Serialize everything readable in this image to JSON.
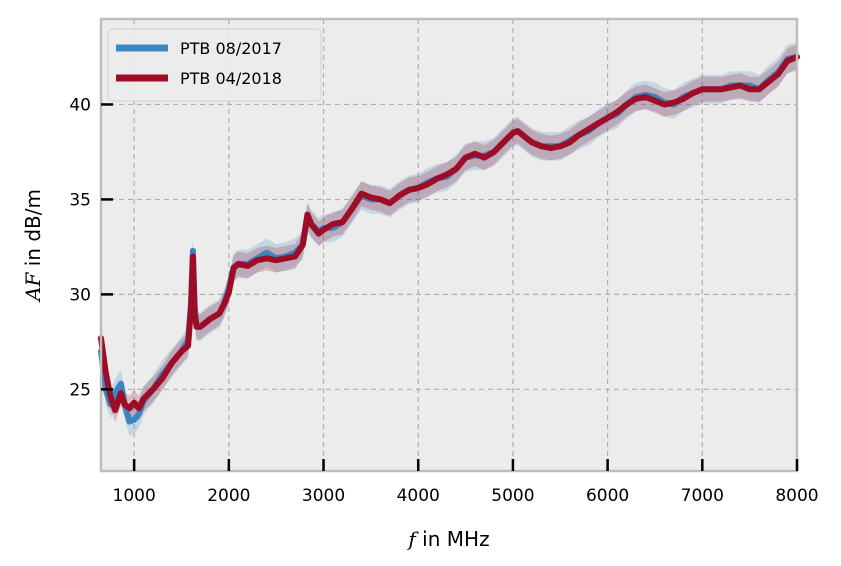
{
  "chart_data": {
    "type": "line",
    "xlabel_var": "f",
    "xlabel_rest": " in MHz",
    "ylabel_var": "AF",
    "ylabel_rest": " in dB/m",
    "xlim": [
      650,
      8000
    ],
    "ylim": [
      20.7,
      44.5
    ],
    "xticks": [
      1000,
      2000,
      3000,
      4000,
      5000,
      6000,
      7000,
      8000
    ],
    "yticks": [
      25,
      30,
      35,
      40
    ],
    "grid": true,
    "legend_position": "top-left",
    "background": "#ececec",
    "series": [
      {
        "name": "PTB 08/2017",
        "color": "#3a87c0",
        "x": [
          650,
          700,
          750,
          800,
          860,
          900,
          950,
          1000,
          1050,
          1100,
          1200,
          1300,
          1400,
          1500,
          1570,
          1600,
          1620,
          1640,
          1660,
          1700,
          1800,
          1900,
          1950,
          2000,
          2050,
          2100,
          2200,
          2300,
          2400,
          2500,
          2600,
          2700,
          2780,
          2830,
          2870,
          2950,
          3000,
          3100,
          3200,
          3300,
          3400,
          3500,
          3600,
          3700,
          3800,
          3900,
          4000,
          4100,
          4200,
          4300,
          4400,
          4500,
          4600,
          4700,
          4800,
          4900,
          5000,
          5050,
          5100,
          5200,
          5300,
          5400,
          5500,
          5600,
          5700,
          5800,
          5900,
          6000,
          6100,
          6200,
          6300,
          6400,
          6500,
          6600,
          6700,
          6800,
          6900,
          7000,
          7100,
          7200,
          7300,
          7400,
          7500,
          7600,
          7700,
          7800,
          7900,
          8000
        ],
        "y": [
          27.0,
          25.0,
          24.2,
          24.8,
          25.3,
          24.2,
          23.3,
          23.4,
          23.7,
          24.4,
          25.0,
          25.8,
          26.4,
          27.0,
          27.6,
          29.5,
          32.3,
          29.3,
          28.3,
          28.3,
          28.7,
          29.0,
          29.5,
          30.3,
          31.4,
          31.6,
          31.6,
          31.9,
          32.2,
          31.9,
          32.0,
          32.2,
          32.6,
          34.0,
          33.7,
          33.3,
          33.5,
          33.5,
          33.8,
          34.5,
          35.2,
          35.0,
          35.0,
          34.8,
          35.2,
          35.5,
          35.6,
          35.9,
          36.1,
          36.2,
          36.6,
          37.2,
          37.3,
          37.3,
          37.5,
          38.0,
          38.5,
          38.6,
          38.4,
          38.0,
          37.8,
          37.8,
          37.8,
          38.1,
          38.4,
          38.6,
          39.0,
          39.3,
          39.5,
          40.0,
          40.4,
          40.5,
          40.4,
          40.1,
          40.0,
          40.4,
          40.6,
          40.8,
          40.8,
          40.8,
          41.0,
          41.0,
          41.0,
          40.8,
          41.3,
          41.7,
          42.4,
          42.5
        ]
      },
      {
        "name": "PTB 04/2018",
        "color": "#9e0d28",
        "x": [
          650,
          700,
          750,
          800,
          860,
          900,
          950,
          1000,
          1050,
          1100,
          1200,
          1300,
          1400,
          1500,
          1570,
          1600,
          1620,
          1640,
          1660,
          1700,
          1800,
          1900,
          1950,
          2000,
          2050,
          2100,
          2200,
          2300,
          2400,
          2500,
          2600,
          2700,
          2780,
          2830,
          2870,
          2950,
          3000,
          3100,
          3200,
          3300,
          3400,
          3500,
          3600,
          3700,
          3800,
          3900,
          4000,
          4100,
          4200,
          4300,
          4400,
          4500,
          4600,
          4700,
          4800,
          4900,
          5000,
          5050,
          5100,
          5200,
          5300,
          5400,
          5500,
          5600,
          5700,
          5800,
          5900,
          6000,
          6100,
          6200,
          6300,
          6400,
          6500,
          6600,
          6700,
          6800,
          6900,
          7000,
          7100,
          7200,
          7300,
          7400,
          7500,
          7600,
          7700,
          7800,
          7900,
          8000
        ],
        "y": [
          27.7,
          25.9,
          24.6,
          23.9,
          24.8,
          24.2,
          24.0,
          24.3,
          24.0,
          24.5,
          25.0,
          25.6,
          26.4,
          27.0,
          27.3,
          29.3,
          32.0,
          29.0,
          28.3,
          28.3,
          28.7,
          29.0,
          29.5,
          30.1,
          31.4,
          31.6,
          31.5,
          31.8,
          31.9,
          31.8,
          31.9,
          32.0,
          32.6,
          34.2,
          33.7,
          33.2,
          33.4,
          33.7,
          33.8,
          34.5,
          35.3,
          35.1,
          35.0,
          34.8,
          35.2,
          35.5,
          35.6,
          35.8,
          36.1,
          36.3,
          36.6,
          37.2,
          37.4,
          37.2,
          37.5,
          38.0,
          38.5,
          38.6,
          38.4,
          38.0,
          37.8,
          37.7,
          37.8,
          38.0,
          38.4,
          38.7,
          39.0,
          39.3,
          39.6,
          40.0,
          40.3,
          40.4,
          40.2,
          40.0,
          40.1,
          40.3,
          40.6,
          40.8,
          40.8,
          40.8,
          40.9,
          41.0,
          40.8,
          40.8,
          41.2,
          41.6,
          42.3,
          42.5
        ]
      }
    ]
  }
}
